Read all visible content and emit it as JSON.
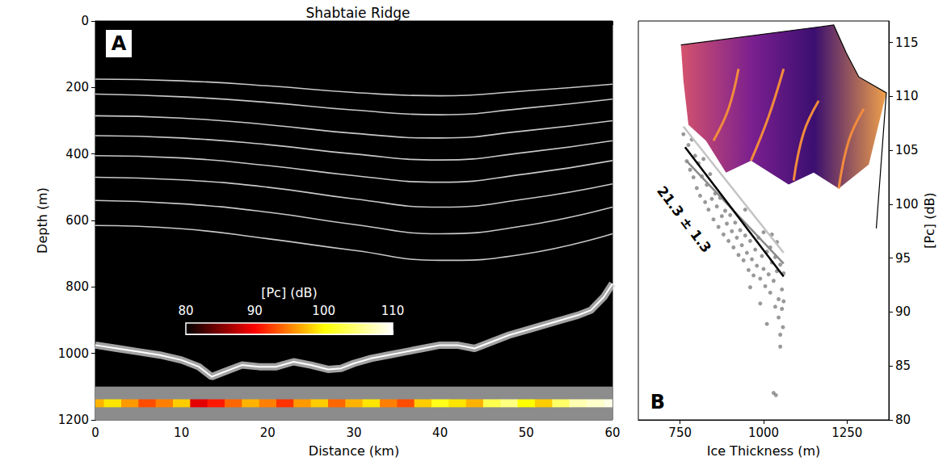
{
  "chart_data": [
    {
      "type": "radargram",
      "panel_label": "A",
      "title": "Shabtaie Ridge",
      "x_label": "Distance (km)",
      "y_label": "Depth (m)",
      "xlim": [
        0,
        60
      ],
      "xticks": [
        0,
        10,
        20,
        30,
        40,
        50,
        60
      ],
      "ylim": [
        1200,
        0
      ],
      "yticks": [
        0,
        200,
        400,
        600,
        800,
        1000,
        1200
      ],
      "layers": {
        "color": "#c8c8c8",
        "x": [
          0,
          10,
          20,
          30,
          40,
          50,
          60
        ],
        "depths": [
          [
            175,
            180,
            195,
            215,
            225,
            210,
            190
          ],
          [
            220,
            228,
            245,
            268,
            282,
            262,
            235
          ],
          [
            285,
            292,
            312,
            338,
            352,
            330,
            300
          ],
          [
            345,
            352,
            372,
            400,
            418,
            395,
            360
          ],
          [
            405,
            412,
            435,
            465,
            485,
            460,
            420
          ],
          [
            470,
            478,
            500,
            535,
            560,
            535,
            490
          ],
          [
            540,
            550,
            575,
            612,
            640,
            615,
            560
          ],
          [
            615,
            625,
            655,
            690,
            720,
            700,
            640
          ]
        ]
      },
      "bed": {
        "color": "#d9d9d9",
        "x": [
          0,
          2.5,
          5,
          7.5,
          10,
          12,
          13.5,
          15,
          17,
          19,
          21,
          23,
          25,
          27,
          28.5,
          30,
          32,
          34,
          36,
          38,
          40,
          42,
          44,
          46,
          48,
          50,
          52,
          54,
          56,
          57.5,
          59,
          60
        ],
        "values": [
          975,
          985,
          995,
          1005,
          1020,
          1040,
          1070,
          1055,
          1035,
          1040,
          1040,
          1025,
          1035,
          1048,
          1045,
          1030,
          1015,
          1005,
          995,
          985,
          975,
          975,
          985,
          965,
          945,
          930,
          915,
          900,
          885,
          870,
          830,
          790
        ]
      },
      "pc_strip": {
        "band": [
          1100,
          1200
        ],
        "depth_range": [
          1138,
          1162
        ],
        "x": [
          0,
          2,
          4,
          6,
          8,
          10,
          12,
          14,
          16,
          18,
          20,
          22,
          24,
          26,
          28,
          30,
          32,
          34,
          36,
          38,
          40,
          42,
          44,
          46,
          48,
          50,
          52,
          54,
          56,
          58,
          60
        ],
        "values": [
          97,
          99,
          96,
          93,
          95,
          98,
          89,
          91,
          94,
          97,
          95,
          92,
          96,
          98,
          94,
          97,
          99,
          95,
          93,
          98,
          101,
          99,
          97,
          103,
          105,
          100,
          98,
          104,
          107,
          108,
          109
        ]
      },
      "colorbar": {
        "label": "[Pc] (dB)",
        "range": [
          80,
          110
        ],
        "ticks": [
          80,
          90,
          100,
          110
        ]
      }
    },
    {
      "type": "scatter",
      "panel_label": "B",
      "x_label": "Ice Thickness (m)",
      "y_label": "[Pc] (dB)",
      "xlim": [
        625,
        1375
      ],
      "xticks": [
        750,
        1000,
        1250
      ],
      "ylim": [
        80,
        117
      ],
      "yticks": [
        80,
        85,
        90,
        95,
        100,
        105,
        110,
        115
      ],
      "color": "#808080",
      "marker": "circle",
      "x": [
        760,
        770,
        775,
        780,
        785,
        790,
        795,
        800,
        805,
        810,
        815,
        820,
        825,
        830,
        835,
        840,
        845,
        850,
        855,
        860,
        865,
        870,
        875,
        880,
        885,
        890,
        895,
        900,
        905,
        910,
        915,
        920,
        925,
        930,
        935,
        940,
        945,
        950,
        955,
        960,
        965,
        970,
        975,
        980,
        985,
        990,
        995,
        1000,
        1005,
        1010,
        1015,
        1020,
        1025,
        1030,
        1035,
        1040,
        1045,
        1050,
        1055,
        1060,
        1045,
        1050,
        1055,
        1058,
        1035,
        1025,
        1040,
        1000,
        990,
        1030,
        1037,
        1010,
        1050,
        960,
        945,
        1020,
        1060
      ],
      "values": [
        106.5,
        104,
        105.5,
        103.2,
        106,
        102.5,
        104.5,
        101.5,
        103.8,
        100.8,
        102.6,
        104.2,
        100.2,
        101.8,
        99.5,
        102.8,
        100.5,
        98.6,
        101,
        99.8,
        97.9,
        100.6,
        98.9,
        97.2,
        99.4,
        98.2,
        96.6,
        99,
        97.5,
        96,
        98.3,
        96.9,
        95.3,
        97.6,
        96.2,
        94.8,
        97.1,
        95.5,
        93.9,
        96.6,
        94.9,
        93.4,
        95.8,
        94.3,
        96.9,
        93.1,
        95.2,
        94,
        92.4,
        95.6,
        93.5,
        91.8,
        94.6,
        92.9,
        95.1,
        93.8,
        91.2,
        94.4,
        92.1,
        93.6,
        89.5,
        87.9,
        90.3,
        88.6,
        90.5,
        97.2,
        96.5,
        97.4,
        90.8,
        82.5,
        82.3,
        88.9,
        86.8,
        92.3,
        99.5,
        96,
        91
      ],
      "fits": [
        {
          "color": "#c4c4c4",
          "x": [
            760,
            1060
          ],
          "values": [
            107.2,
            95.5
          ]
        },
        {
          "color": "#8a8a8a",
          "x": [
            770,
            1060
          ],
          "values": [
            104.0,
            94.5
          ]
        },
        {
          "color": "#000000",
          "x": [
            765,
            1060
          ],
          "values": [
            105.3,
            93.3
          ]
        }
      ],
      "annotation": "21.3 ± 1.3"
    }
  ]
}
